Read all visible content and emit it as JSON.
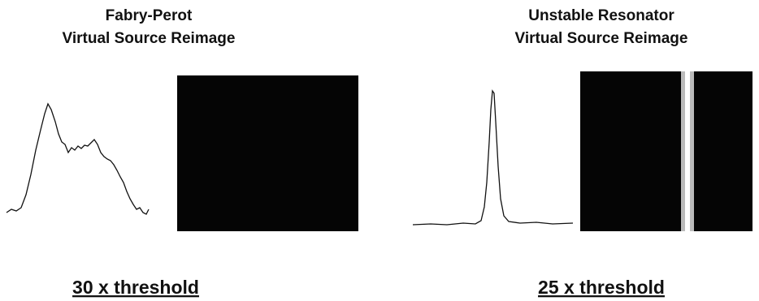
{
  "panels": [
    {
      "title": [
        "Fabry-Perot",
        "Virtual Source Reimage"
      ],
      "caption": "30 x threshold"
    },
    {
      "title": [
        "Unstable Resonator",
        "Virtual Source Reimage"
      ],
      "caption": "25 x threshold"
    }
  ]
}
